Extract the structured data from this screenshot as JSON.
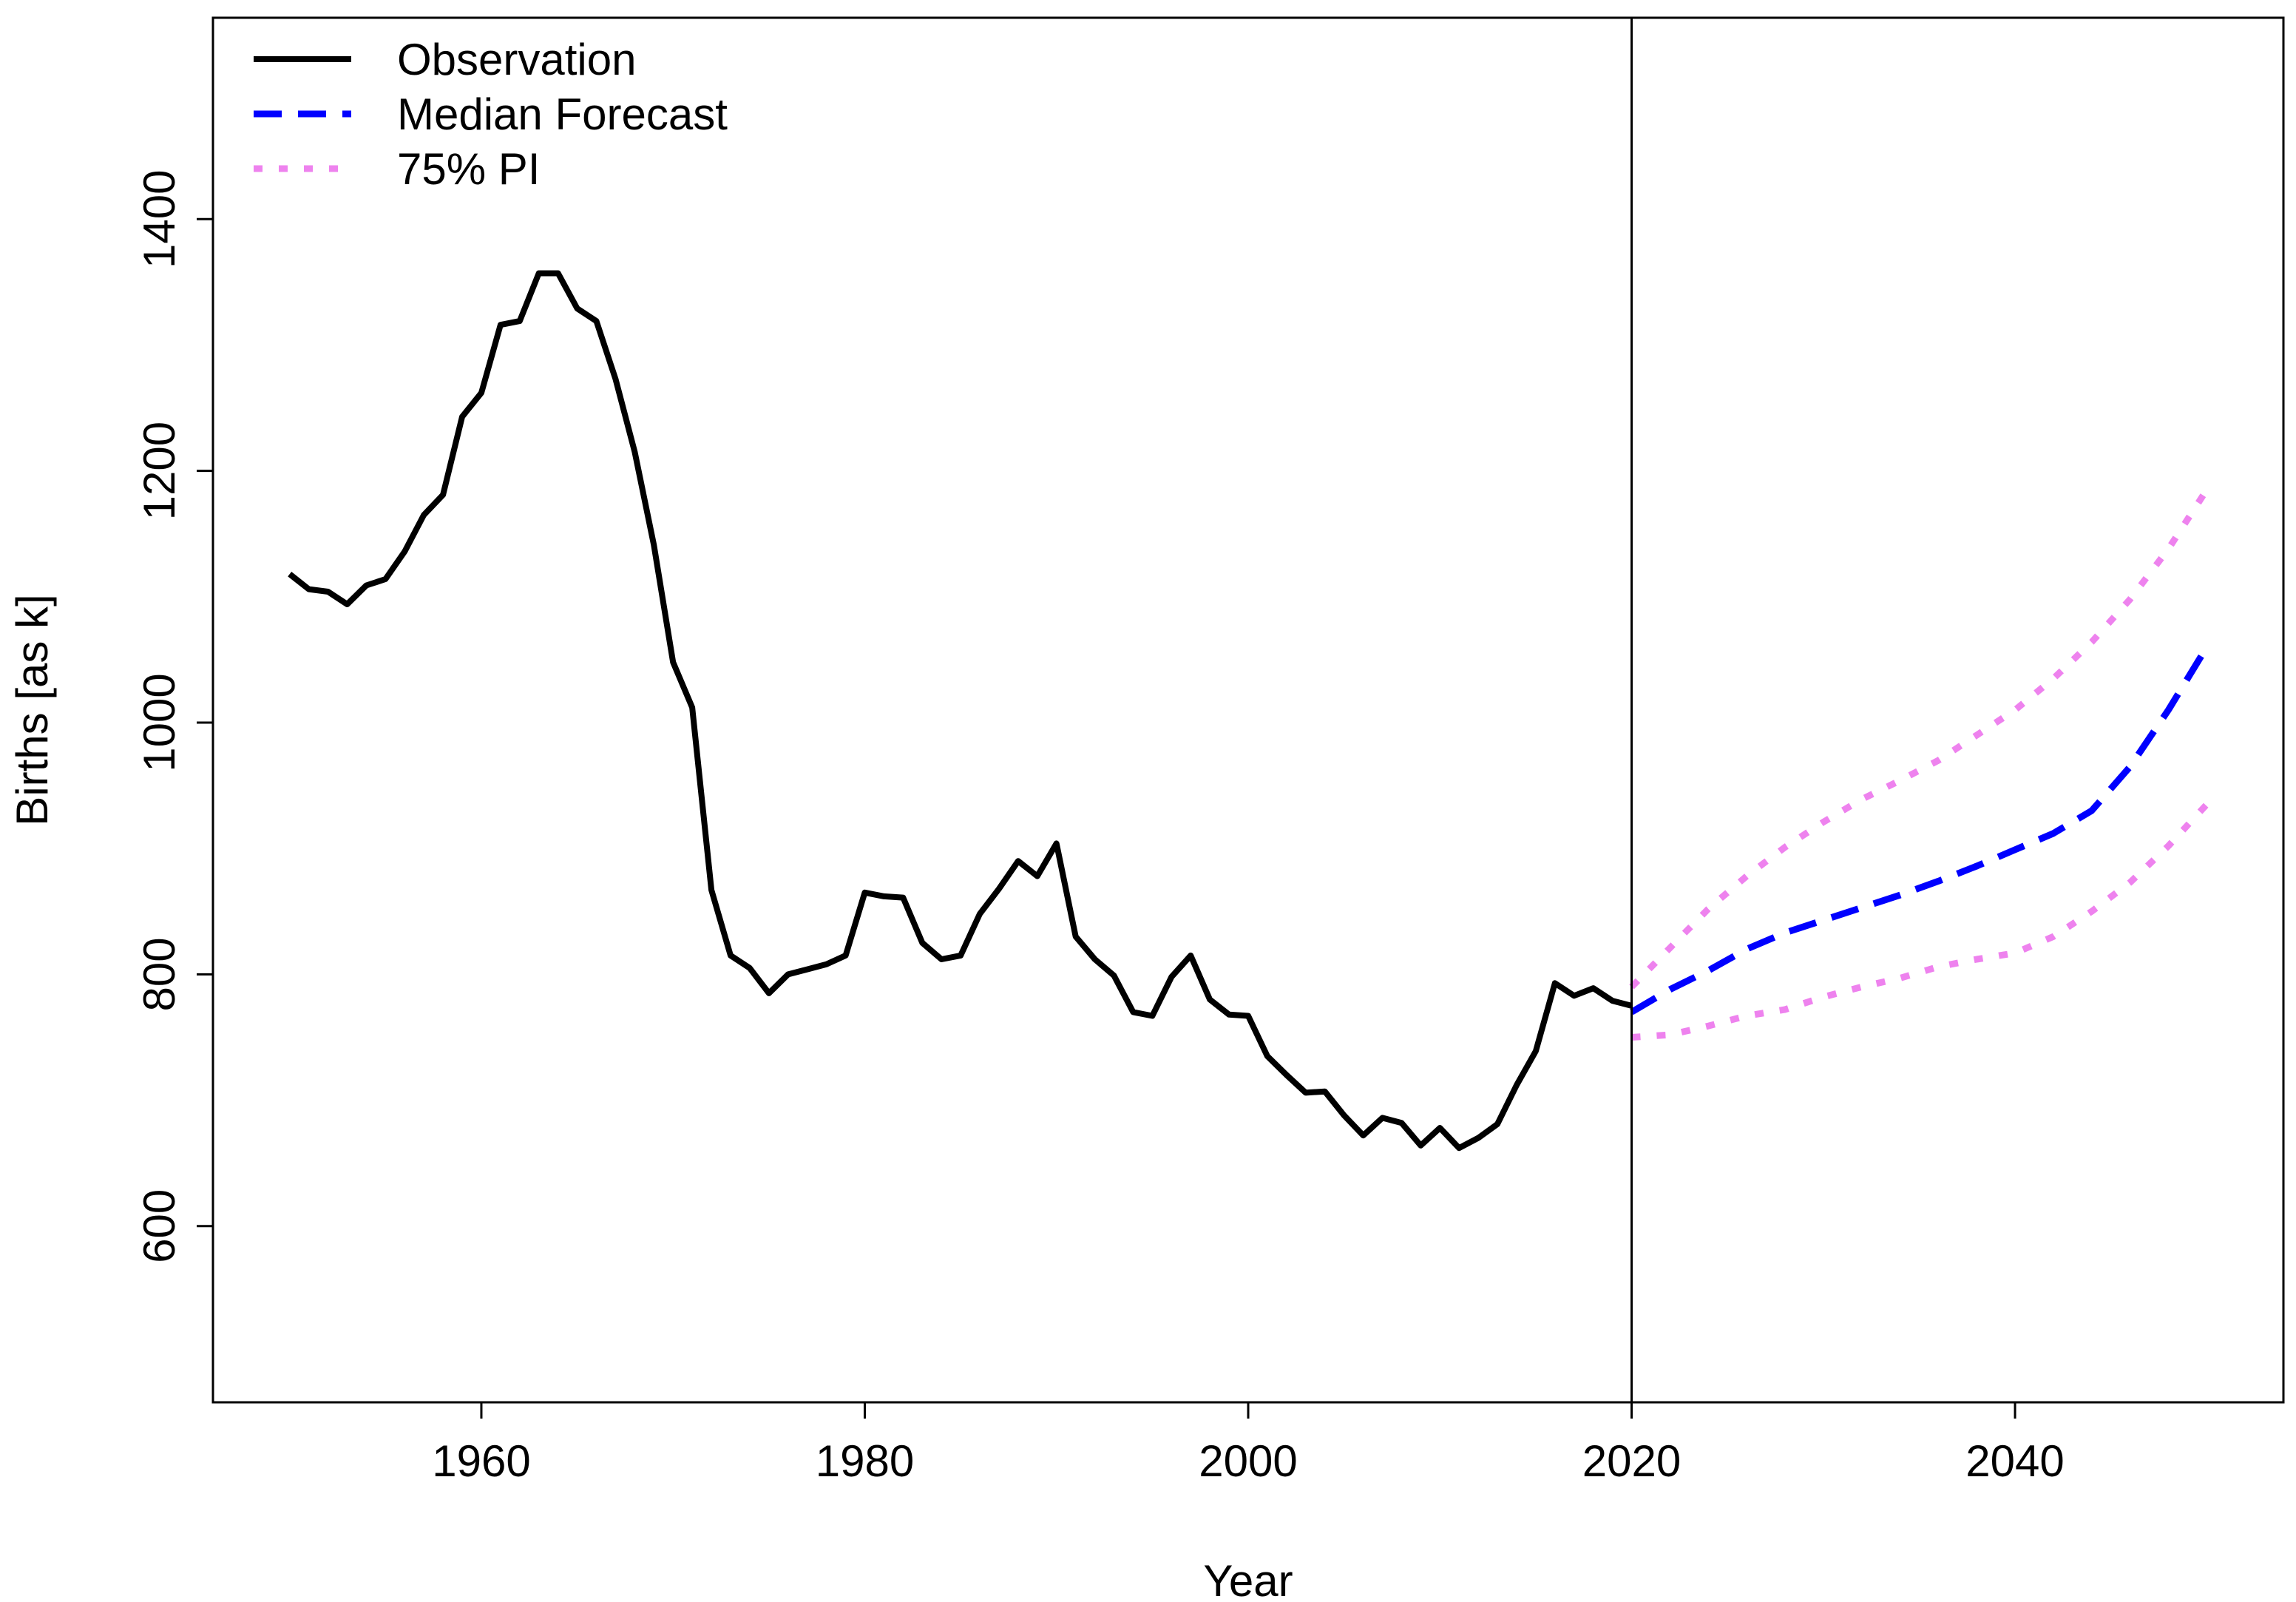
{
  "chart_data": {
    "type": "line",
    "title": "",
    "xlabel": "Year",
    "ylabel": "Births [as k]",
    "xlim": [
      1946,
      2054
    ],
    "ylim": [
      460,
      1560
    ],
    "xticks": [
      1960,
      1980,
      2000,
      2020,
      2040
    ],
    "yticks": [
      600,
      800,
      1000,
      1200,
      1400
    ],
    "vline": 2020,
    "legend_position": "top-left",
    "series": [
      {
        "name": "Observation",
        "color": "#000000",
        "style": "solid",
        "x": [
          1950,
          1951,
          1952,
          1953,
          1954,
          1955,
          1956,
          1957,
          1958,
          1959,
          1960,
          1961,
          1962,
          1963,
          1964,
          1965,
          1966,
          1967,
          1968,
          1969,
          1970,
          1971,
          1972,
          1973,
          1974,
          1975,
          1976,
          1977,
          1978,
          1979,
          1980,
          1981,
          1982,
          1983,
          1984,
          1985,
          1986,
          1987,
          1988,
          1989,
          1990,
          1991,
          1992,
          1993,
          1994,
          1995,
          1996,
          1997,
          1998,
          1999,
          2000,
          2001,
          2002,
          2003,
          2004,
          2005,
          2006,
          2007,
          2008,
          2009,
          2010,
          2011,
          2012,
          2013,
          2014,
          2015,
          2016,
          2017,
          2018,
          2019,
          2020
        ],
        "y": [
          1118,
          1106,
          1104,
          1094,
          1109,
          1114,
          1136,
          1165,
          1181,
          1243,
          1262,
          1316,
          1319,
          1357,
          1357,
          1329,
          1319,
          1273,
          1215,
          1141,
          1048,
          1012,
          867,
          815,
          805,
          785,
          800,
          804,
          808,
          815,
          865,
          862,
          861,
          825,
          812,
          815,
          848,
          868,
          890,
          878,
          904,
          830,
          812,
          799,
          770,
          767,
          798,
          815,
          780,
          768,
          767,
          735,
          720,
          706,
          707,
          688,
          672,
          686,
          682,
          664,
          678,
          662,
          670,
          681,
          712,
          739,
          793,
          783,
          789,
          779,
          775
        ]
      },
      {
        "name": "Median Forecast",
        "color": "#0000ff",
        "style": "dashed",
        "x": [
          2020,
          2022,
          2024,
          2026,
          2028,
          2030,
          2032,
          2034,
          2036,
          2038,
          2040,
          2042,
          2044,
          2046,
          2048,
          2050
        ],
        "y": [
          770,
          788,
          803,
          820,
          833,
          843,
          853,
          863,
          874,
          886,
          899,
          912,
          930,
          965,
          1010,
          1060
        ]
      },
      {
        "name": "75% PI",
        "color": "#ee82ee",
        "style": "dotted",
        "x": [
          2020,
          2022,
          2024,
          2026,
          2028,
          2030,
          2032,
          2034,
          2036,
          2038,
          2040,
          2042,
          2044,
          2046,
          2048,
          2050
        ],
        "y": [
          790,
          821,
          852,
          878,
          901,
          921,
          939,
          954,
          970,
          990,
          1010,
          1035,
          1064,
          1098,
          1138,
          1185
        ]
      },
      {
        "name": "75% PI lower",
        "legend": false,
        "color": "#ee82ee",
        "style": "dotted",
        "x": [
          2020,
          2022,
          2024,
          2026,
          2028,
          2030,
          2032,
          2034,
          2036,
          2038,
          2040,
          2042,
          2044,
          2046,
          2048,
          2050
        ],
        "y": [
          750,
          752,
          759,
          767,
          772,
          782,
          790,
          797,
          806,
          812,
          817,
          830,
          850,
          873,
          902,
          935
        ]
      }
    ]
  }
}
